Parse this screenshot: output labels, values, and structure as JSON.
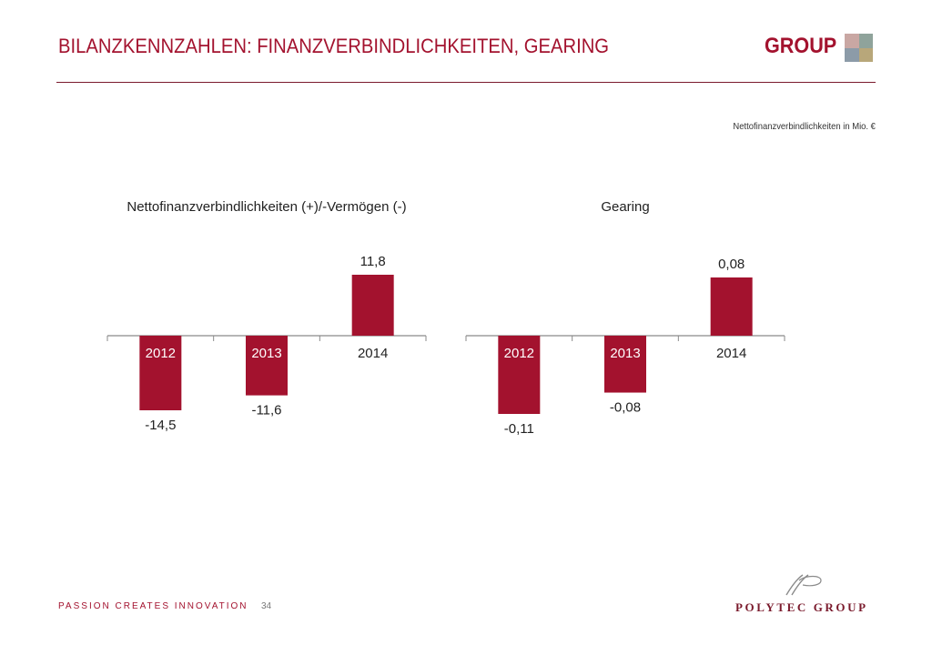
{
  "header": {
    "title": "BILANZKENNZAHLEN: FINANZVERBINDLICHKEITEN, GEARING",
    "brand": "GROUP"
  },
  "unit_note": "Nettofinanzverbindlichkeiten in Mio. €",
  "colors": {
    "bar": "#a3122e",
    "accent": "#a3122e",
    "logo": [
      "#c9a7a3",
      "#8fa39b",
      "#8c9ba8",
      "#b8a77a"
    ]
  },
  "chart_data": [
    {
      "type": "bar",
      "title": "Nettofinanzverbindlichkeiten (+)/-Vermögen (-)",
      "categories": [
        "2012",
        "2013",
        "2014"
      ],
      "values": [
        -14.5,
        -11.6,
        11.8
      ],
      "value_labels": [
        "-14,5",
        "-11,6",
        "11,8"
      ],
      "ylim": [
        -14.5,
        11.8
      ]
    },
    {
      "type": "bar",
      "title": "Gearing",
      "categories": [
        "2012",
        "2013",
        "2014"
      ],
      "values": [
        -0.11,
        -0.08,
        0.08
      ],
      "value_labels": [
        "-0,11",
        "-0,08",
        "0,08"
      ],
      "ylim": [
        -0.11,
        0.08
      ]
    }
  ],
  "footer": {
    "tagline": "PASSION  CREATES  INNOVATION",
    "page": "34",
    "company": "POLYTEC GROUP"
  }
}
